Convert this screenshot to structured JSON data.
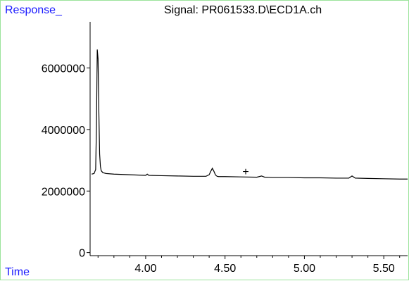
{
  "title": "Signal: PR061533.D\\ECD1A.ch",
  "axis_labels": {
    "y": "Response_",
    "x": "Time"
  },
  "colors": {
    "axis_label": "#1a1aff",
    "trace": "#000000",
    "frame": "#9be39b"
  },
  "chart_data": {
    "type": "line",
    "title": "Signal: PR061533.D\\ECD1A.ch",
    "xlabel": "Time",
    "ylabel": "Response_",
    "xlim": [
      3.65,
      5.65
    ],
    "ylim": [
      -100000,
      7500000
    ],
    "x_ticks": [
      4.0,
      4.5,
      5.0,
      5.5
    ],
    "x_tick_labels": [
      "4.00",
      "4.50",
      "5.00",
      "5.50"
    ],
    "y_ticks": [
      0,
      2000000,
      4000000,
      6000000
    ],
    "y_tick_labels": [
      "0",
      "2000000",
      "4000000",
      "6000000"
    ],
    "grid": false,
    "legend": "none",
    "annotations": [
      {
        "text": "+",
        "x": 4.63,
        "y": 2620000
      }
    ],
    "series": [
      {
        "x": [
          3.66,
          3.675,
          3.685,
          3.69,
          3.695,
          3.7,
          3.705,
          3.71,
          3.715,
          3.72,
          3.73,
          3.75,
          3.8,
          3.9,
          4.0,
          4.01,
          4.02,
          4.1,
          4.2,
          4.3,
          4.38,
          4.4,
          4.41,
          4.42,
          4.43,
          4.44,
          4.45,
          4.46,
          4.5,
          4.6,
          4.7,
          4.73,
          4.75,
          4.8,
          4.9,
          5.0,
          5.1,
          5.2,
          5.28,
          5.3,
          5.32,
          5.4,
          5.5,
          5.6,
          5.65
        ],
        "y": [
          2550000,
          2570000,
          2700000,
          4100000,
          6600000,
          6300000,
          4600000,
          3200000,
          2800000,
          2660000,
          2600000,
          2570000,
          2550000,
          2530000,
          2510000,
          2550000,
          2510000,
          2500000,
          2490000,
          2480000,
          2480000,
          2530000,
          2640000,
          2740000,
          2640000,
          2520000,
          2480000,
          2470000,
          2470000,
          2460000,
          2450000,
          2490000,
          2450000,
          2440000,
          2440000,
          2430000,
          2430000,
          2420000,
          2420000,
          2490000,
          2420000,
          2410000,
          2400000,
          2390000,
          2390000
        ]
      }
    ]
  }
}
